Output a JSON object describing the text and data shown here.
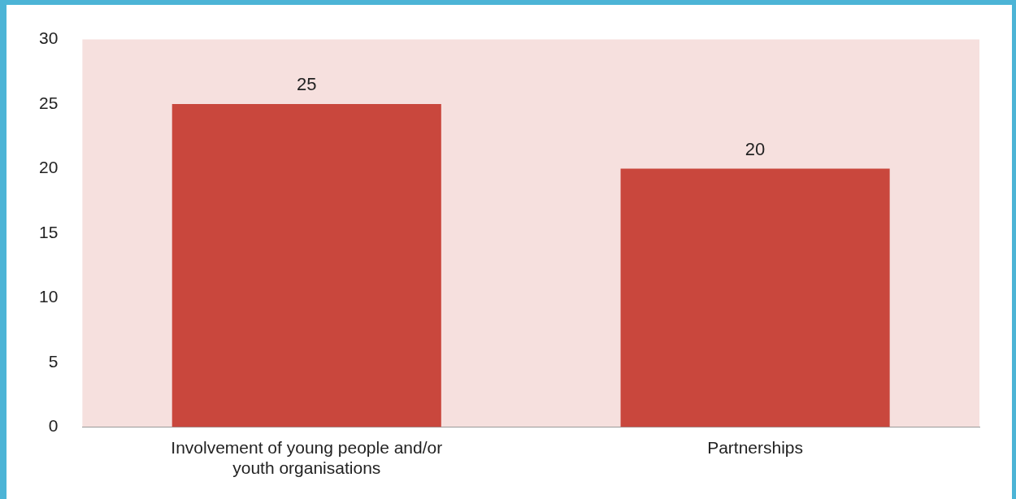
{
  "chart_data": {
    "type": "bar",
    "categories": [
      "Involvement of young people and/or youth organisations",
      "Partnerships"
    ],
    "values": [
      25,
      20
    ],
    "color": "#c9473d",
    "ylim": [
      0,
      30
    ],
    "yticks": [
      0,
      5,
      10,
      15,
      20,
      25,
      30
    ],
    "grid": false,
    "legend": false,
    "data_labels": true
  }
}
